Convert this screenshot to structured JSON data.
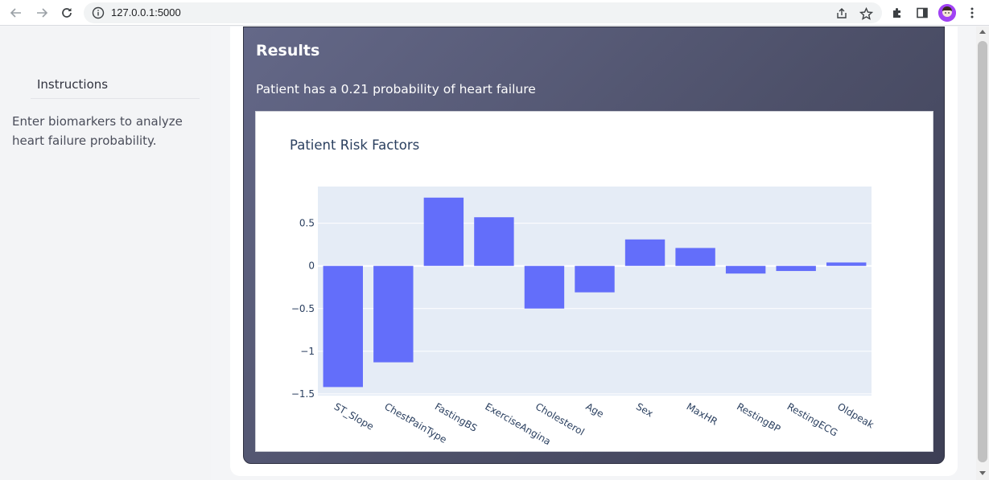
{
  "browser": {
    "url": "127.0.0.1:5000",
    "icons": {
      "back": "back-arrow-icon",
      "forward": "forward-arrow-icon",
      "reload": "reload-icon",
      "info": "info-icon",
      "share": "share-icon",
      "bookmark": "star-icon",
      "extensions": "puzzle-icon",
      "sidepanel": "side-panel-icon",
      "profile": "avatar",
      "menu": "kebab-menu-icon"
    }
  },
  "sidebar": {
    "title": "Instructions",
    "text": "Enter biomarkers to analyze heart failure probability."
  },
  "results": {
    "title": "Results",
    "summary": "Patient has a 0.21 probability of heart failure"
  },
  "chart_data": {
    "type": "bar",
    "title": "Patient Risk Factors",
    "categories": [
      "ST_Slope",
      "ChestPainType",
      "FastingBS",
      "ExerciseAngina",
      "Cholesterol",
      "Age",
      "Sex",
      "MaxHR",
      "RestingBP",
      "RestingECG",
      "Oldpeak"
    ],
    "values": [
      -1.42,
      -1.13,
      0.8,
      0.57,
      -0.5,
      -0.31,
      0.31,
      0.21,
      -0.09,
      -0.06,
      0.04
    ],
    "yticks": [
      0.5,
      0,
      -0.5,
      -1,
      -1.5
    ],
    "ytick_labels": [
      "0.5",
      "0",
      "−0.5",
      "−1",
      "−1.5"
    ],
    "ylim": [
      -1.52,
      0.93
    ],
    "grid": true,
    "colors": {
      "bar": "#636efa",
      "plot_bg": "#e5ecf6",
      "grid": "#ffffff"
    }
  }
}
